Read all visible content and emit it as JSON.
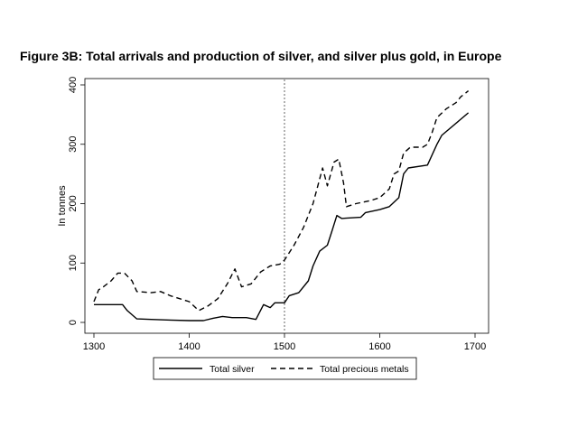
{
  "chart_data": {
    "type": "line",
    "title": "Figure 3B: Total arrivals and production of silver, and silver plus gold, in Europe",
    "xlabel": "",
    "ylabel": "In tonnes",
    "xlim": [
      1300,
      1700
    ],
    "ylim": [
      0,
      400
    ],
    "x_ticks": [
      "1300",
      "1400",
      "1500",
      "1600",
      "1700"
    ],
    "y_ticks": [
      "0",
      "100",
      "200",
      "300",
      "400"
    ],
    "reference_line_x": 1500,
    "legend": {
      "placement": "bottom",
      "entries": [
        "Total silver",
        "Total precious metals"
      ]
    },
    "series": [
      {
        "name": "Total silver",
        "style": "solid",
        "points": [
          [
            1300,
            30
          ],
          [
            1330,
            30
          ],
          [
            1335,
            20
          ],
          [
            1345,
            6
          ],
          [
            1360,
            5
          ],
          [
            1380,
            4
          ],
          [
            1400,
            3
          ],
          [
            1415,
            3
          ],
          [
            1425,
            7
          ],
          [
            1435,
            10
          ],
          [
            1445,
            8
          ],
          [
            1460,
            8
          ],
          [
            1470,
            5
          ],
          [
            1478,
            30
          ],
          [
            1485,
            25
          ],
          [
            1490,
            33
          ],
          [
            1500,
            33
          ],
          [
            1505,
            45
          ],
          [
            1515,
            50
          ],
          [
            1525,
            70
          ],
          [
            1530,
            95
          ],
          [
            1537,
            120
          ],
          [
            1545,
            130
          ],
          [
            1550,
            155
          ],
          [
            1555,
            180
          ],
          [
            1560,
            175
          ],
          [
            1580,
            177
          ],
          [
            1585,
            185
          ],
          [
            1600,
            190
          ],
          [
            1610,
            195
          ],
          [
            1620,
            210
          ],
          [
            1625,
            250
          ],
          [
            1630,
            260
          ],
          [
            1650,
            265
          ],
          [
            1660,
            300
          ],
          [
            1665,
            315
          ],
          [
            1693,
            353
          ]
        ]
      },
      {
        "name": "Total precious metals",
        "style": "dashed",
        "points": [
          [
            1300,
            35
          ],
          [
            1305,
            55
          ],
          [
            1310,
            60
          ],
          [
            1318,
            70
          ],
          [
            1325,
            83
          ],
          [
            1332,
            83
          ],
          [
            1340,
            70
          ],
          [
            1345,
            52
          ],
          [
            1360,
            50
          ],
          [
            1370,
            52
          ],
          [
            1380,
            45
          ],
          [
            1390,
            40
          ],
          [
            1400,
            35
          ],
          [
            1410,
            20
          ],
          [
            1420,
            28
          ],
          [
            1430,
            40
          ],
          [
            1440,
            65
          ],
          [
            1448,
            90
          ],
          [
            1455,
            60
          ],
          [
            1465,
            65
          ],
          [
            1475,
            85
          ],
          [
            1485,
            95
          ],
          [
            1495,
            98
          ],
          [
            1500,
            105
          ],
          [
            1510,
            130
          ],
          [
            1520,
            160
          ],
          [
            1530,
            200
          ],
          [
            1535,
            230
          ],
          [
            1540,
            260
          ],
          [
            1545,
            230
          ],
          [
            1552,
            270
          ],
          [
            1557,
            275
          ],
          [
            1562,
            235
          ],
          [
            1565,
            195
          ],
          [
            1575,
            200
          ],
          [
            1590,
            205
          ],
          [
            1600,
            210
          ],
          [
            1610,
            225
          ],
          [
            1615,
            250
          ],
          [
            1620,
            255
          ],
          [
            1625,
            285
          ],
          [
            1632,
            295
          ],
          [
            1645,
            295
          ],
          [
            1650,
            300
          ],
          [
            1655,
            320
          ],
          [
            1660,
            345
          ],
          [
            1670,
            360
          ],
          [
            1680,
            370
          ],
          [
            1685,
            380
          ],
          [
            1693,
            390
          ]
        ]
      }
    ]
  }
}
